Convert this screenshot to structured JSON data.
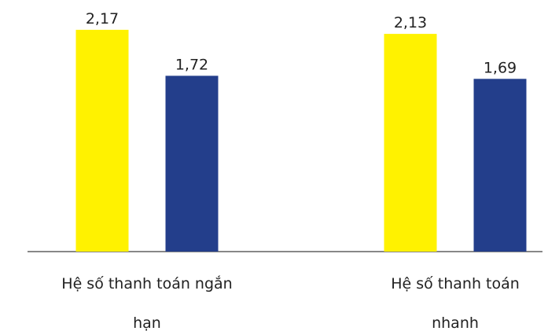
{
  "chart_data": {
    "type": "bar",
    "categories": [
      "Hệ số thanh toán ngắn hạn",
      "Hệ số thanh toán nhanh"
    ],
    "series": [
      {
        "color": "#fff200",
        "values": [
          2.17,
          2.13
        ],
        "value_labels": [
          "2,17",
          "2,13"
        ]
      },
      {
        "color": "#233e8b",
        "values": [
          1.72,
          1.69
        ],
        "value_labels": [
          "1,72",
          "1,69"
        ]
      }
    ],
    "ylim": [
      0,
      2.4
    ]
  }
}
